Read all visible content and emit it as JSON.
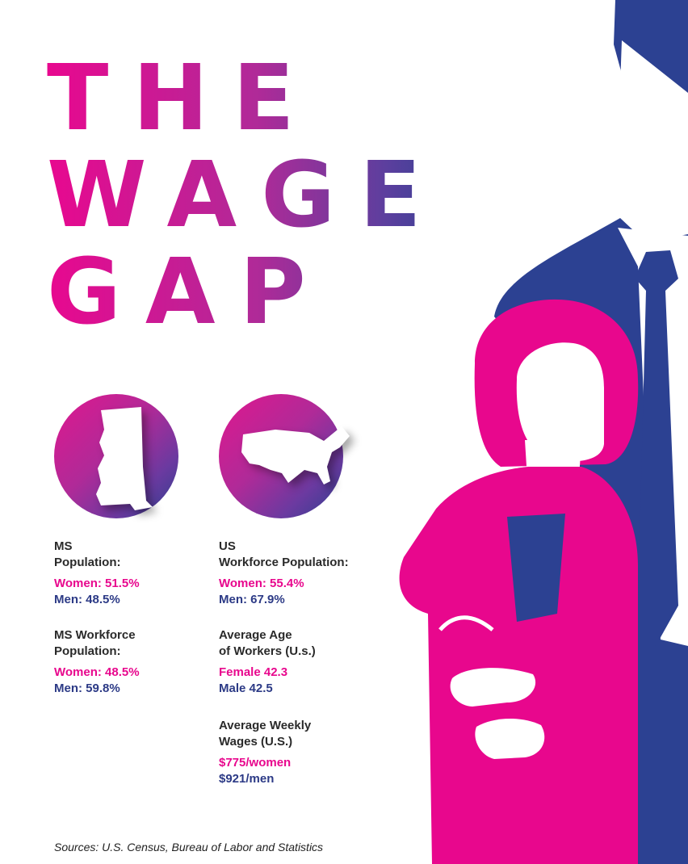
{
  "title": {
    "line1": "THE",
    "line2": "WAGE",
    "line3": "GAP"
  },
  "icons": {
    "left_circle": "mississippi-map-icon",
    "right_circle": "usa-map-icon"
  },
  "colors": {
    "pink": "#e8078d",
    "navy": "#2c3a86",
    "text": "#2a2a2a",
    "background": "#ffffff"
  },
  "stats": {
    "ms_population": {
      "label_1": "MS",
      "label_2": "Population:",
      "women": "Women: 51.5%",
      "men": "Men: 48.5%"
    },
    "ms_workforce": {
      "label_1": "MS Workforce",
      "label_2": "Population:",
      "women": "Women: 48.5%",
      "men": "Men: 59.8%"
    },
    "us_workforce": {
      "label_1": "US",
      "label_2": "Workforce Population:",
      "women": "Women: 55.4%",
      "men": "Men: 67.9%"
    },
    "us_age": {
      "label_1": "Average Age",
      "label_2": "of Workers (U.s.)",
      "female": "Female 42.3",
      "male": "Male 42.5"
    },
    "us_wages": {
      "label_1": "Average Weekly",
      "label_2": "Wages (U.S.)",
      "women": "$775/women",
      "men": "$921/men"
    }
  },
  "sources": "Sources: U.S. Census, Bureau of Labor and Statistics"
}
